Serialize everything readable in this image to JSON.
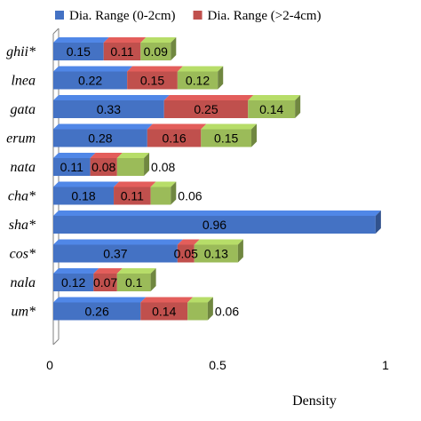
{
  "chart_data": {
    "type": "bar",
    "orientation": "horizontal",
    "stacked": true,
    "style": "3d",
    "categories": [
      "ghii*",
      "lnea",
      "gata",
      "erum",
      "nata",
      "cha*",
      "sha*",
      "cos*",
      "nala",
      "um*"
    ],
    "series": [
      {
        "name": "Dia. Range (0-2cm)",
        "color": "#4472C4",
        "values": [
          0.15,
          0.22,
          0.33,
          0.28,
          0.11,
          0.18,
          0.96,
          0.37,
          0.12,
          0.26
        ]
      },
      {
        "name": "Dia. Range (>2-4cm)",
        "color": "#C0504D",
        "values": [
          0.11,
          0.15,
          0.25,
          0.16,
          0.08,
          0.11,
          null,
          0.05,
          0.07,
          0.14
        ]
      },
      {
        "name": "",
        "color": "#9BBB59",
        "values": [
          0.09,
          0.12,
          0.14,
          0.15,
          0.08,
          0.06,
          null,
          0.13,
          0.1,
          0.06
        ]
      }
    ],
    "xlabel": "Density",
    "xlim": [
      0,
      1.08
    ],
    "xticks": [
      "0",
      "0.5",
      "1"
    ],
    "legend": "top"
  }
}
